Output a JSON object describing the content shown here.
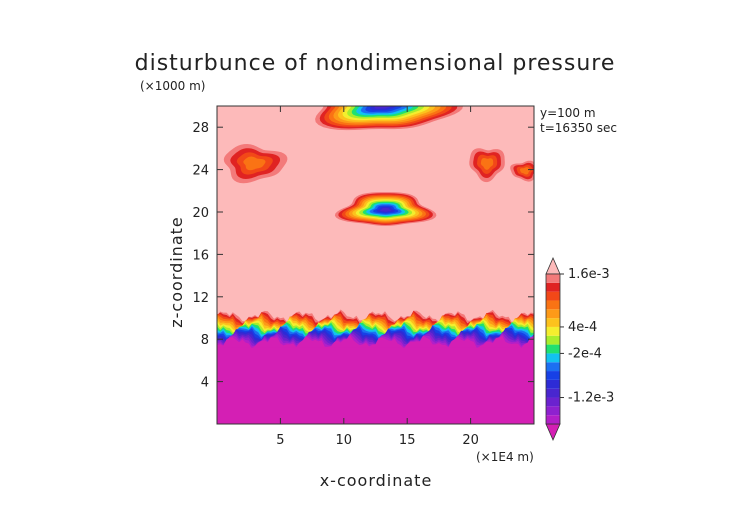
{
  "chart_data": {
    "type": "heatmap",
    "title": "disturbunce of nondimensional pressure",
    "xlabel": "x-coordinate",
    "ylabel": "z-coordinate",
    "x_unit": "(×1E4 m)",
    "y_unit": "(×1000 m)",
    "xlim": [
      0,
      25
    ],
    "ylim": [
      0,
      30
    ],
    "x_ticks": [
      5,
      10,
      15,
      20
    ],
    "y_ticks": [
      4,
      8,
      12,
      16,
      20,
      24,
      28
    ],
    "annotations": [
      "y=100 m",
      "t=16350 sec"
    ],
    "colorbar": {
      "levels": [
        -0.0018,
        -0.0016,
        -0.0014,
        -0.0012,
        -0.001,
        -0.0008,
        -0.0006,
        -0.0004,
        -0.0002,
        0,
        0.0002,
        0.0004,
        0.0006,
        0.0008,
        0.001,
        0.0012,
        0.0014,
        0.0016,
        0.0018
      ],
      "colors": [
        "#d41fb4",
        "#b21fc8",
        "#8e21cf",
        "#6b22cf",
        "#4926cf",
        "#2d2bd6",
        "#1740e6",
        "#1c6ff2",
        "#12c2f0",
        "#1fe070",
        "#a8ed2c",
        "#f4ee2e",
        "#fcc21d",
        "#fd9a18",
        "#fa7314",
        "#f24818",
        "#e02322",
        "#f37a7a",
        "#fdbaba"
      ],
      "tick_labels": [
        "1.6e-3",
        "4e-4",
        "-2e-4",
        "-1.2e-3"
      ],
      "tick_levels": [
        0.0016,
        0.0004,
        -0.0002,
        -0.0012
      ]
    },
    "features": [
      {
        "kind": "layer",
        "z_bottom": 0,
        "z_top": 7.6,
        "value": -0.0018
      },
      {
        "kind": "transition",
        "z_bottom": 7.6,
        "z_top": 10.2
      },
      {
        "kind": "background",
        "value": 0.0018
      },
      {
        "kind": "blob",
        "x_center": 13.3,
        "z_center": 20.2,
        "rx": 3.6,
        "rz": 1.6,
        "min_value": -0.001
      },
      {
        "kind": "blob",
        "x_center": 13.0,
        "z_center": 30.0,
        "rx": 5.5,
        "rz": 2.4,
        "min_value": -0.001
      },
      {
        "kind": "blob",
        "x_center": 2.9,
        "z_center": 24.6,
        "rx": 2.4,
        "rz": 1.7,
        "min_value": 0.001
      },
      {
        "kind": "blob",
        "x_center": 21.3,
        "z_center": 24.6,
        "rx": 1.4,
        "rz": 1.5,
        "min_value": 0.001
      },
      {
        "kind": "blob",
        "x_center": 24.3,
        "z_center": 23.9,
        "rx": 1.1,
        "rz": 0.9,
        "min_value": 0.001
      }
    ]
  }
}
